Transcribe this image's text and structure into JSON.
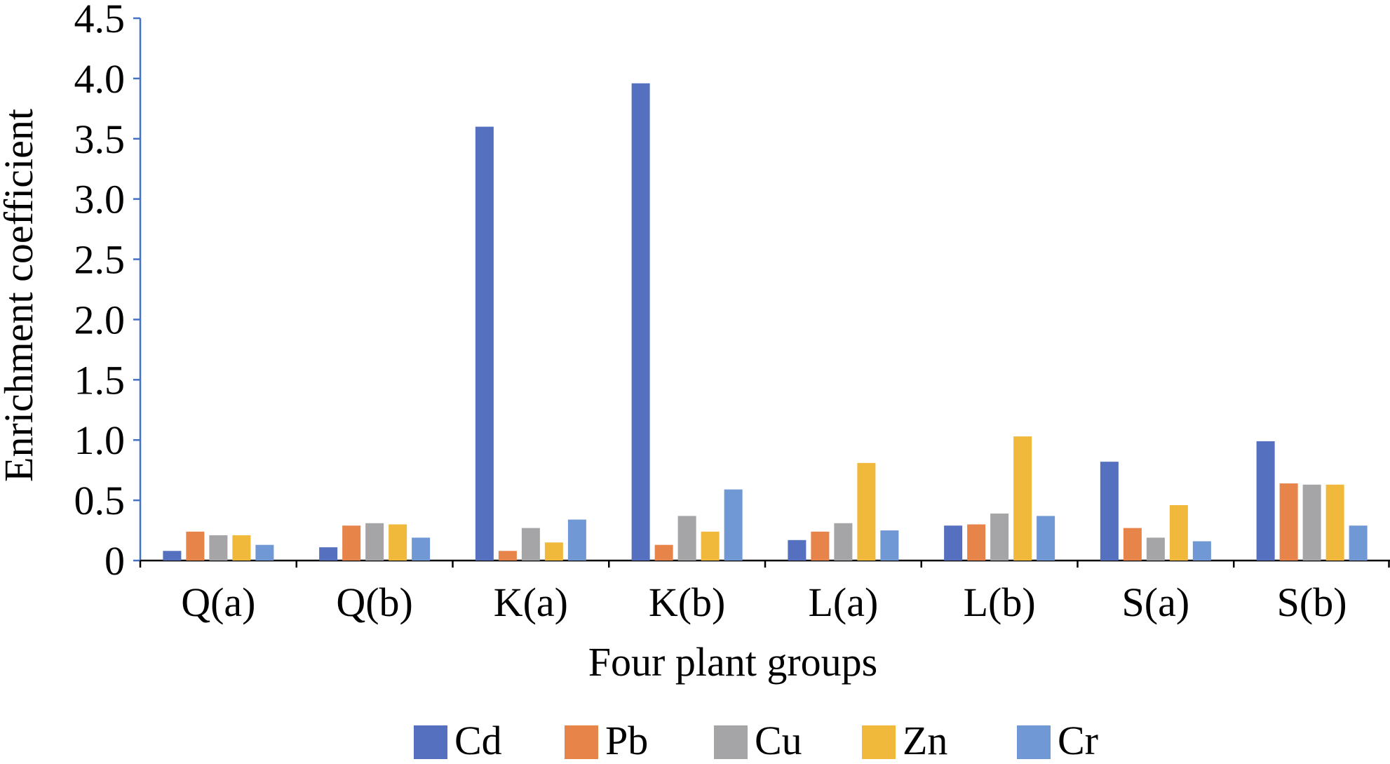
{
  "chart_data": {
    "type": "bar",
    "title": "",
    "xlabel": "Four plant groups",
    "ylabel": "Enrichment coefficient",
    "categories": [
      "Q(a)",
      "Q(b)",
      "K(a)",
      "K(b)",
      "L(a)",
      "L(b)",
      "S(a)",
      "S(b)"
    ],
    "ylim": [
      0,
      4.5
    ],
    "yticks": [
      "0",
      "0.5",
      "1.0",
      "1.5",
      "2.0",
      "2.5",
      "3.0",
      "3.5",
      "4.0",
      "4.5"
    ],
    "ytick_values": [
      0,
      0.5,
      1.0,
      1.5,
      2.0,
      2.5,
      3.0,
      3.5,
      4.0,
      4.5
    ],
    "grid": false,
    "legend_position": "bottom",
    "axis_color": "#4472C4",
    "series": [
      {
        "name": "Cd",
        "color": "#5470BE",
        "values": [
          0.08,
          0.11,
          3.6,
          3.96,
          0.17,
          0.29,
          0.82,
          0.99
        ]
      },
      {
        "name": "Pb",
        "color": "#E6844A",
        "values": [
          0.24,
          0.29,
          0.08,
          0.13,
          0.24,
          0.3,
          0.27,
          0.64
        ]
      },
      {
        "name": "Cu",
        "color": "#A5A5A8",
        "values": [
          0.21,
          0.31,
          0.27,
          0.37,
          0.31,
          0.39,
          0.19,
          0.63
        ]
      },
      {
        "name": "Zn",
        "color": "#F1B93C",
        "values": [
          0.21,
          0.3,
          0.15,
          0.24,
          0.81,
          1.03,
          0.46,
          0.63
        ]
      },
      {
        "name": "Cr",
        "color": "#7098D4",
        "values": [
          0.13,
          0.19,
          0.34,
          0.59,
          0.25,
          0.37,
          0.16,
          0.29
        ]
      }
    ]
  }
}
